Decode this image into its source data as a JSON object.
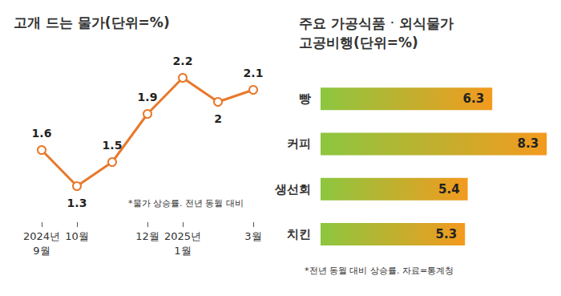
{
  "chart_data": [
    {
      "type": "line",
      "title": "고개 드는 물가(단위=%)",
      "annotations": [
        "*물가 상승률. 전년 동월 대비"
      ],
      "categories": [
        "2024년\n9월",
        "10월",
        null,
        "12월",
        "2025년\n1월",
        null,
        "3월"
      ],
      "values": [
        1.6,
        1.3,
        1.5,
        1.9,
        2.2,
        2.0,
        2.1
      ],
      "color": "#e8792b",
      "marker": "circle",
      "ylim": [
        1.0,
        2.5
      ],
      "grid": false,
      "data_labels": true,
      "tick_labels": "x"
    },
    {
      "type": "bar",
      "title": "주요 가공식품ㆍ외식물가\n고공비행(단위=%)",
      "annotations": [
        "*전년 동월 대비 상승률. 자료=통계청"
      ],
      "categories": [
        "빵",
        "커피",
        "생선회",
        "치킨"
      ],
      "values": [
        6.3,
        8.3,
        5.4,
        5.3
      ],
      "color": "#f39a1e",
      "orientation": "horizontal",
      "xlim": [
        0,
        8.5
      ],
      "grid": false,
      "data_labels": true,
      "tick_labels": "y"
    }
  ]
}
